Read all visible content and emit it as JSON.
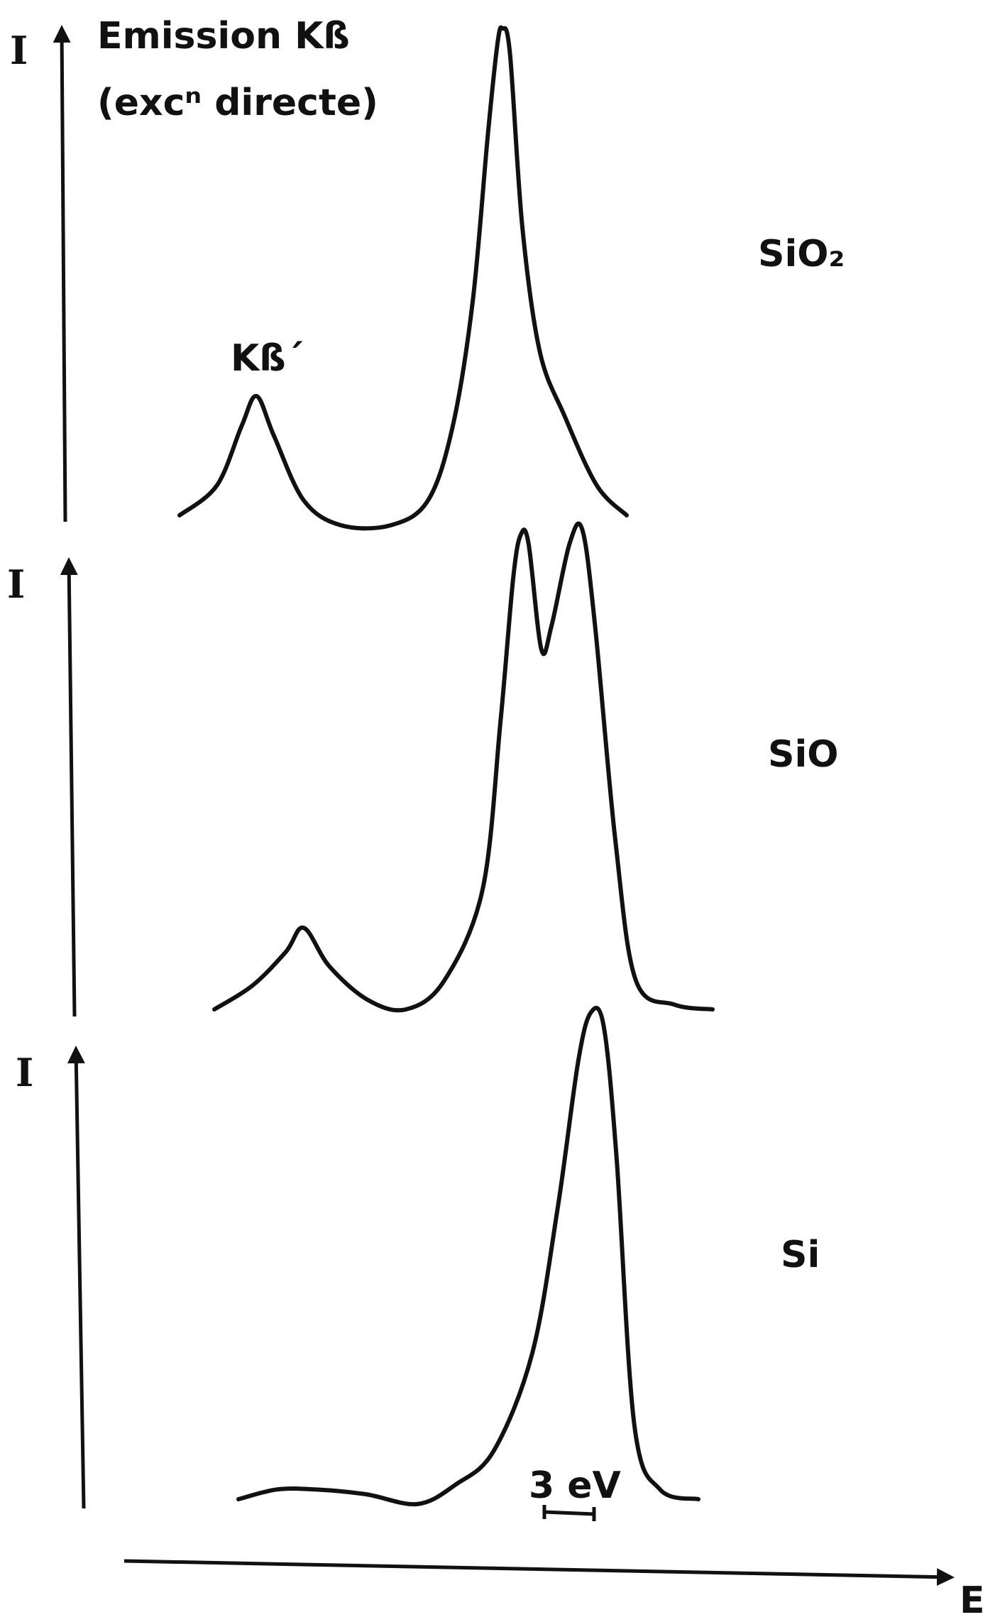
{
  "chart_data": {
    "type": "line",
    "title": "Emission Kß",
    "subtitle": "(excⁿ directe)",
    "xlabel": "E",
    "ylabel": "I",
    "scale_bar": "3 eV",
    "peak_annotation": "Kß´",
    "x_range": [
      -12,
      12
    ],
    "x_units": "eV (relative)",
    "grid": false,
    "legend": "none",
    "panels": [
      {
        "name": "SiO₂",
        "ylabel": "I",
        "series": [
          {
            "name": "SiO₂",
            "points": [
              [
                -13.0,
                0.02
              ],
              [
                -11.5,
                0.08
              ],
              [
                -10.5,
                0.2
              ],
              [
                -9.9,
                0.26
              ],
              [
                -9.2,
                0.18
              ],
              [
                -8.0,
                0.05
              ],
              [
                -6.5,
                0.0
              ],
              [
                -4.5,
                0.0
              ],
              [
                -3.0,
                0.05
              ],
              [
                -2.0,
                0.2
              ],
              [
                -1.2,
                0.45
              ],
              [
                -0.6,
                0.78
              ],
              [
                -0.2,
                0.97
              ],
              [
                0.0,
                1.0
              ],
              [
                0.3,
                0.95
              ],
              [
                0.8,
                0.6
              ],
              [
                1.5,
                0.35
              ],
              [
                2.5,
                0.22
              ],
              [
                3.8,
                0.08
              ],
              [
                5.0,
                0.02
              ]
            ]
          }
        ]
      },
      {
        "name": "SiO",
        "ylabel": "I",
        "series": [
          {
            "name": "SiO",
            "points": [
              [
                -13.0,
                0.0
              ],
              [
                -11.5,
                0.05
              ],
              [
                -10.2,
                0.12
              ],
              [
                -9.5,
                0.17
              ],
              [
                -8.5,
                0.09
              ],
              [
                -7.0,
                0.02
              ],
              [
                -5.5,
                0.0
              ],
              [
                -4.0,
                0.06
              ],
              [
                -2.5,
                0.25
              ],
              [
                -1.8,
                0.6
              ],
              [
                -1.3,
                0.9
              ],
              [
                -1.0,
                0.99
              ],
              [
                -0.7,
                0.97
              ],
              [
                -0.2,
                0.75
              ],
              [
                0.2,
                0.8
              ],
              [
                0.9,
                0.97
              ],
              [
                1.4,
                1.0
              ],
              [
                1.9,
                0.8
              ],
              [
                2.7,
                0.35
              ],
              [
                3.5,
                0.06
              ],
              [
                5.0,
                0.01
              ],
              [
                6.5,
                0.0
              ]
            ]
          }
        ]
      },
      {
        "name": "Si",
        "ylabel": "I",
        "series": [
          {
            "name": "Si",
            "points": [
              [
                -13.0,
                0.0
              ],
              [
                -11.5,
                0.02
              ],
              [
                -10.0,
                0.02
              ],
              [
                -8.0,
                0.01
              ],
              [
                -6.0,
                -0.01
              ],
              [
                -4.5,
                0.03
              ],
              [
                -3.0,
                0.1
              ],
              [
                -1.5,
                0.3
              ],
              [
                -0.5,
                0.6
              ],
              [
                0.3,
                0.9
              ],
              [
                0.8,
                1.0
              ],
              [
                1.3,
                0.97
              ],
              [
                1.8,
                0.7
              ],
              [
                2.5,
                0.15
              ],
              [
                3.5,
                0.02
              ],
              [
                5.0,
                0.0
              ]
            ]
          }
        ]
      }
    ]
  }
}
